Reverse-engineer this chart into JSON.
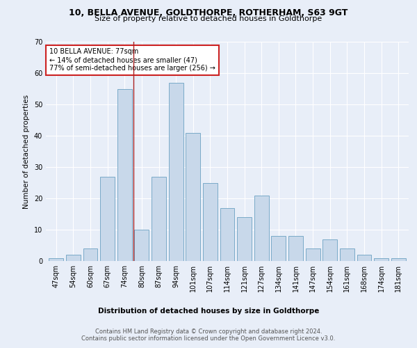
{
  "title": "10, BELLA AVENUE, GOLDTHORPE, ROTHERHAM, S63 9GT",
  "subtitle": "Size of property relative to detached houses in Goldthorpe",
  "xlabel": "Distribution of detached houses by size in Goldthorpe",
  "ylabel": "Number of detached properties",
  "categories": [
    "47sqm",
    "54sqm",
    "60sqm",
    "67sqm",
    "74sqm",
    "80sqm",
    "87sqm",
    "94sqm",
    "101sqm",
    "107sqm",
    "114sqm",
    "121sqm",
    "127sqm",
    "134sqm",
    "141sqm",
    "147sqm",
    "154sqm",
    "161sqm",
    "168sqm",
    "174sqm",
    "181sqm"
  ],
  "values": [
    1,
    2,
    4,
    27,
    55,
    10,
    27,
    57,
    41,
    25,
    17,
    14,
    21,
    8,
    8,
    4,
    7,
    4,
    2,
    1,
    1
  ],
  "bar_color": "#c8d8ea",
  "bar_edge_color": "#7aaac8",
  "vline_x": 4.5,
  "vline_color": "#aa2222",
  "annotation_text": "10 BELLA AVENUE: 77sqm\n← 14% of detached houses are smaller (47)\n77% of semi-detached houses are larger (256) →",
  "annotation_box_color": "white",
  "annotation_box_edge": "#cc2222",
  "ylim": [
    0,
    70
  ],
  "yticks": [
    0,
    10,
    20,
    30,
    40,
    50,
    60,
    70
  ],
  "footer": "Contains HM Land Registry data © Crown copyright and database right 2024.\nContains public sector information licensed under the Open Government Licence v3.0.",
  "bg_color": "#e8eef8",
  "plot_bg_color": "#e8eef8",
  "grid_color": "white",
  "title_fontsize": 9,
  "subtitle_fontsize": 8,
  "xlabel_fontsize": 7.5,
  "ylabel_fontsize": 7.5,
  "tick_fontsize": 7,
  "footer_fontsize": 6,
  "annot_fontsize": 7
}
